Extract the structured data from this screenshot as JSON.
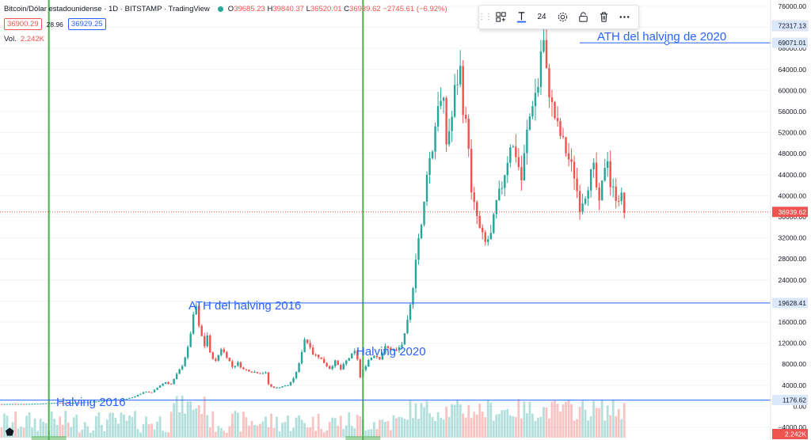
{
  "header": {
    "symbol": "Bitcoin/Dólar estadounidense · 1D · BITSTAMP · TradingView",
    "ohlc": [
      {
        "k": "O",
        "v": "39685.23"
      },
      {
        "k": "H",
        "v": "39840.37"
      },
      {
        "k": "L",
        "v": "36520.01"
      },
      {
        "k": "C",
        "v": "36939.62"
      }
    ],
    "change": "−2745.61 (−6.92%)",
    "bid": "36900.29",
    "spread": "28.96",
    "ask": "36929.25",
    "vol_label": "Vol.",
    "vol_value": "2.242K"
  },
  "toolbar": {
    "font_size": "24",
    "icons": [
      "drag-handle-icon",
      "template-icon",
      "text-color-icon",
      "settings-icon",
      "lock-icon",
      "delete-icon",
      "more-icon"
    ]
  },
  "colors": {
    "up": "#26a69a",
    "down": "#ef5350",
    "drawing": "#2962ff",
    "halving_line": "#4caf50"
  },
  "chart_data": {
    "type": "candlestick",
    "title": "Bitcoin/Dólar estadounidense · 1D · BITSTAMP",
    "ylim": [
      -5000,
      78000
    ],
    "y_ticks": [
      "76000.00",
      "72000.00",
      "68000.00",
      "64000.00",
      "60000.00",
      "56000.00",
      "52000.00",
      "48000.00",
      "44000.00",
      "40000.00",
      "36000.00",
      "32000.00",
      "28000.00",
      "24000.00",
      "20000.00",
      "16000.00",
      "12000.00",
      "8000.00",
      "4000.00",
      "0.00",
      "−4000.00"
    ],
    "series": [
      {
        "name": "BTCUSD",
        "points": [
          [
            0,
            420
          ],
          [
            4,
            430
          ],
          [
            7,
            440
          ],
          [
            10,
            460
          ],
          [
            14,
            520
          ],
          [
            17,
            600
          ],
          [
            20,
            650
          ],
          [
            24,
            640
          ],
          [
            27,
            700
          ],
          [
            30,
            760
          ],
          [
            34,
            900
          ],
          [
            37,
            1100
          ],
          [
            40,
            1200
          ],
          [
            44,
            1300
          ],
          [
            47,
            1700
          ],
          [
            50,
            2400
          ],
          [
            52,
            2800
          ],
          [
            54,
            2600
          ],
          [
            57,
            4000
          ],
          [
            59,
            4600
          ],
          [
            61,
            4200
          ],
          [
            63,
            6000
          ],
          [
            65,
            7800
          ],
          [
            67,
            11000
          ],
          [
            69,
            17000
          ],
          [
            70,
            19000
          ],
          [
            71,
            15000
          ],
          [
            73,
            11500
          ],
          [
            74,
            13500
          ],
          [
            75,
            10000
          ],
          [
            77,
            8500
          ],
          [
            79,
            11000
          ],
          [
            81,
            9500
          ],
          [
            83,
            7500
          ],
          [
            85,
            8200
          ],
          [
            87,
            7000
          ],
          [
            89,
            6800
          ],
          [
            91,
            6500
          ],
          [
            93,
            6400
          ],
          [
            95,
            6300
          ],
          [
            96,
            4200
          ],
          [
            97,
            3700
          ],
          [
            99,
            3500
          ],
          [
            101,
            3800
          ],
          [
            103,
            4000
          ],
          [
            105,
            5200
          ],
          [
            107,
            8000
          ],
          [
            108,
            10500
          ],
          [
            109,
            12800
          ],
          [
            111,
            11500
          ],
          [
            112,
            10000
          ],
          [
            114,
            9500
          ],
          [
            116,
            8300
          ],
          [
            118,
            7200
          ],
          [
            120,
            8500
          ],
          [
            122,
            7000
          ],
          [
            124,
            8600
          ],
          [
            126,
            9800
          ],
          [
            127,
            10300
          ],
          [
            128,
            9000
          ],
          [
            129,
            5500
          ],
          [
            130,
            6800
          ],
          [
            132,
            8800
          ],
          [
            134,
            9800
          ],
          [
            136,
            9100
          ],
          [
            138,
            11200
          ],
          [
            140,
            10800
          ],
          [
            142,
            10500
          ],
          [
            144,
            11800
          ],
          [
            145,
            13500
          ],
          [
            146,
            16000
          ],
          [
            147,
            19000
          ],
          [
            148,
            23000
          ],
          [
            149,
            28500
          ],
          [
            150,
            32000
          ],
          [
            151,
            34000
          ],
          [
            152,
            38500
          ],
          [
            153,
            45000
          ],
          [
            155,
            49000
          ],
          [
            157,
            58000
          ],
          [
            159,
            57000
          ],
          [
            160,
            50000
          ],
          [
            162,
            55000
          ],
          [
            163,
            60000
          ],
          [
            165,
            64000
          ],
          [
            166,
            57000
          ],
          [
            168,
            50000
          ],
          [
            169,
            40000
          ],
          [
            171,
            36000
          ],
          [
            172,
            33500
          ],
          [
            174,
            31000
          ],
          [
            176,
            32500
          ],
          [
            178,
            38500
          ],
          [
            180,
            42000
          ],
          [
            182,
            47000
          ],
          [
            183,
            50000
          ],
          [
            185,
            48000
          ],
          [
            187,
            43000
          ],
          [
            189,
            52000
          ],
          [
            191,
            58000
          ],
          [
            193,
            61000
          ],
          [
            194,
            67500
          ],
          [
            195,
            69000
          ],
          [
            196,
            63000
          ],
          [
            198,
            57000
          ],
          [
            200,
            53000
          ],
          [
            202,
            50000
          ],
          [
            204,
            47000
          ],
          [
            206,
            44000
          ],
          [
            208,
            38000
          ],
          [
            210,
            40500
          ],
          [
            212,
            44000
          ],
          [
            213,
            45000
          ],
          [
            215,
            38000
          ],
          [
            217,
            46000
          ],
          [
            218,
            47500
          ],
          [
            219,
            42000
          ],
          [
            221,
            40000
          ],
          [
            223,
            39685
          ],
          [
            224,
            36940
          ]
        ]
      }
    ],
    "horizontal_lines": [
      {
        "label": "72317.13"
      },
      {
        "label": "69071.01",
        "value": 69071.01
      },
      {
        "label": "19628.41",
        "value": 19628.41
      },
      {
        "label": "1176.62",
        "value": 1176.62
      }
    ],
    "last_price_label": "36939.62",
    "last_price": 36939.62,
    "volume_label": "2.242K",
    "vertical_lines": [
      {
        "name": "halving-2016",
        "x_index": 17
      },
      {
        "name": "halving-2020",
        "x_index": 130
      }
    ],
    "annotations": [
      {
        "text": "ATH del halving de 2020",
        "x_index": 194
      },
      {
        "text": "ATH del halving 2016",
        "x_index": 70
      },
      {
        "text": "Halving 2020",
        "x_index": 131
      },
      {
        "text": "Halving 2016",
        "x_index": 18
      }
    ]
  }
}
